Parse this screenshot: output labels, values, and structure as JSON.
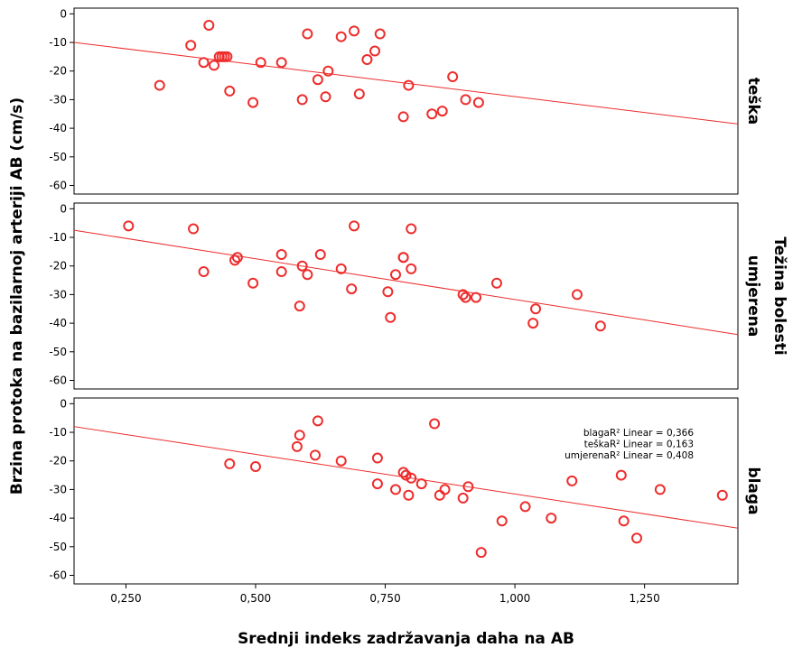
{
  "colors": {
    "marker": "#ee2c2c",
    "fit_line": "#ee2c2c",
    "axis": "#000000",
    "background": "#ffffff"
  },
  "chart_data": {
    "type": "scatter",
    "xlabel": "Srednji indeks zadržavanja daha na AB",
    "ylabel": "Brzina protoka na bazilarnoj arteriji AB  (cm/s)",
    "panel_variable": "Težina bolesti",
    "xlim": [
      0.15,
      1.43
    ],
    "ylim": [
      -63,
      2
    ],
    "x_ticks": [
      0.25,
      0.5,
      0.75,
      1.0,
      1.25
    ],
    "x_tick_labels": [
      "0,250",
      "0,500",
      "0,750",
      "1,000",
      "1,250"
    ],
    "y_ticks": [
      0,
      -10,
      -20,
      -30,
      -40,
      -50,
      -60
    ],
    "y_tick_labels": [
      "0",
      "-10",
      "-20",
      "-30",
      "-40",
      "-50",
      "-60"
    ],
    "legend": [
      "blagaR² Linear = 0,366",
      "teškaR² Linear = 0,163",
      "umjerenaR² Linear = 0,408"
    ],
    "panels": [
      {
        "name": "teška",
        "fit": {
          "x": [
            0.15,
            1.43
          ],
          "y": [
            -10,
            -38.5
          ]
        },
        "points": [
          {
            "x": 0.315,
            "y": -25
          },
          {
            "x": 0.375,
            "y": -11
          },
          {
            "x": 0.4,
            "y": -17
          },
          {
            "x": 0.41,
            "y": -4
          },
          {
            "x": 0.42,
            "y": -18
          },
          {
            "x": 0.43,
            "y": -15
          },
          {
            "x": 0.435,
            "y": -15
          },
          {
            "x": 0.44,
            "y": -15
          },
          {
            "x": 0.445,
            "y": -15
          },
          {
            "x": 0.45,
            "y": -27
          },
          {
            "x": 0.495,
            "y": -31
          },
          {
            "x": 0.51,
            "y": -17
          },
          {
            "x": 0.55,
            "y": -17
          },
          {
            "x": 0.59,
            "y": -30
          },
          {
            "x": 0.6,
            "y": -7
          },
          {
            "x": 0.62,
            "y": -23
          },
          {
            "x": 0.635,
            "y": -29
          },
          {
            "x": 0.64,
            "y": -20
          },
          {
            "x": 0.665,
            "y": -8
          },
          {
            "x": 0.69,
            "y": -6
          },
          {
            "x": 0.7,
            "y": -28
          },
          {
            "x": 0.715,
            "y": -16
          },
          {
            "x": 0.73,
            "y": -13
          },
          {
            "x": 0.74,
            "y": -7
          },
          {
            "x": 0.785,
            "y": -36
          },
          {
            "x": 0.795,
            "y": -25
          },
          {
            "x": 0.84,
            "y": -35
          },
          {
            "x": 0.86,
            "y": -34
          },
          {
            "x": 0.88,
            "y": -22
          },
          {
            "x": 0.905,
            "y": -30
          },
          {
            "x": 0.93,
            "y": -31
          }
        ]
      },
      {
        "name": "umjerena",
        "fit": {
          "x": [
            0.15,
            1.43
          ],
          "y": [
            -7.5,
            -44
          ]
        },
        "points": [
          {
            "x": 0.255,
            "y": -6
          },
          {
            "x": 0.38,
            "y": -7
          },
          {
            "x": 0.4,
            "y": -22
          },
          {
            "x": 0.46,
            "y": -18
          },
          {
            "x": 0.465,
            "y": -17
          },
          {
            "x": 0.495,
            "y": -26
          },
          {
            "x": 0.55,
            "y": -16
          },
          {
            "x": 0.55,
            "y": -22
          },
          {
            "x": 0.585,
            "y": -34
          },
          {
            "x": 0.59,
            "y": -20
          },
          {
            "x": 0.6,
            "y": -23
          },
          {
            "x": 0.625,
            "y": -16
          },
          {
            "x": 0.665,
            "y": -21
          },
          {
            "x": 0.685,
            "y": -28
          },
          {
            "x": 0.69,
            "y": -6
          },
          {
            "x": 0.755,
            "y": -29
          },
          {
            "x": 0.76,
            "y": -38
          },
          {
            "x": 0.77,
            "y": -23
          },
          {
            "x": 0.785,
            "y": -17
          },
          {
            "x": 0.785,
            "y": -17
          },
          {
            "x": 0.8,
            "y": -21
          },
          {
            "x": 0.8,
            "y": -7
          },
          {
            "x": 0.9,
            "y": -30
          },
          {
            "x": 0.905,
            "y": -31
          },
          {
            "x": 0.925,
            "y": -31
          },
          {
            "x": 0.965,
            "y": -26
          },
          {
            "x": 1.035,
            "y": -40
          },
          {
            "x": 1.04,
            "y": -35
          },
          {
            "x": 1.12,
            "y": -30
          },
          {
            "x": 1.165,
            "y": -41
          }
        ]
      },
      {
        "name": "blaga",
        "fit": {
          "x": [
            0.15,
            1.43
          ],
          "y": [
            -8,
            -43.5
          ]
        },
        "points": [
          {
            "x": 0.45,
            "y": -21
          },
          {
            "x": 0.5,
            "y": -22
          },
          {
            "x": 0.58,
            "y": -15
          },
          {
            "x": 0.585,
            "y": -11
          },
          {
            "x": 0.615,
            "y": -18
          },
          {
            "x": 0.62,
            "y": -6
          },
          {
            "x": 0.665,
            "y": -20
          },
          {
            "x": 0.735,
            "y": -28
          },
          {
            "x": 0.735,
            "y": -19
          },
          {
            "x": 0.77,
            "y": -30
          },
          {
            "x": 0.785,
            "y": -24
          },
          {
            "x": 0.79,
            "y": -25
          },
          {
            "x": 0.795,
            "y": -32
          },
          {
            "x": 0.8,
            "y": -26
          },
          {
            "x": 0.82,
            "y": -28
          },
          {
            "x": 0.845,
            "y": -7
          },
          {
            "x": 0.855,
            "y": -32
          },
          {
            "x": 0.865,
            "y": -30
          },
          {
            "x": 0.9,
            "y": -33
          },
          {
            "x": 0.91,
            "y": -29
          },
          {
            "x": 0.935,
            "y": -52
          },
          {
            "x": 0.975,
            "y": -41
          },
          {
            "x": 1.02,
            "y": -36
          },
          {
            "x": 1.07,
            "y": -40
          },
          {
            "x": 1.11,
            "y": -27
          },
          {
            "x": 1.205,
            "y": -25
          },
          {
            "x": 1.21,
            "y": -41
          },
          {
            "x": 1.235,
            "y": -47
          },
          {
            "x": 1.28,
            "y": -30
          },
          {
            "x": 1.4,
            "y": -32
          }
        ]
      }
    ]
  }
}
